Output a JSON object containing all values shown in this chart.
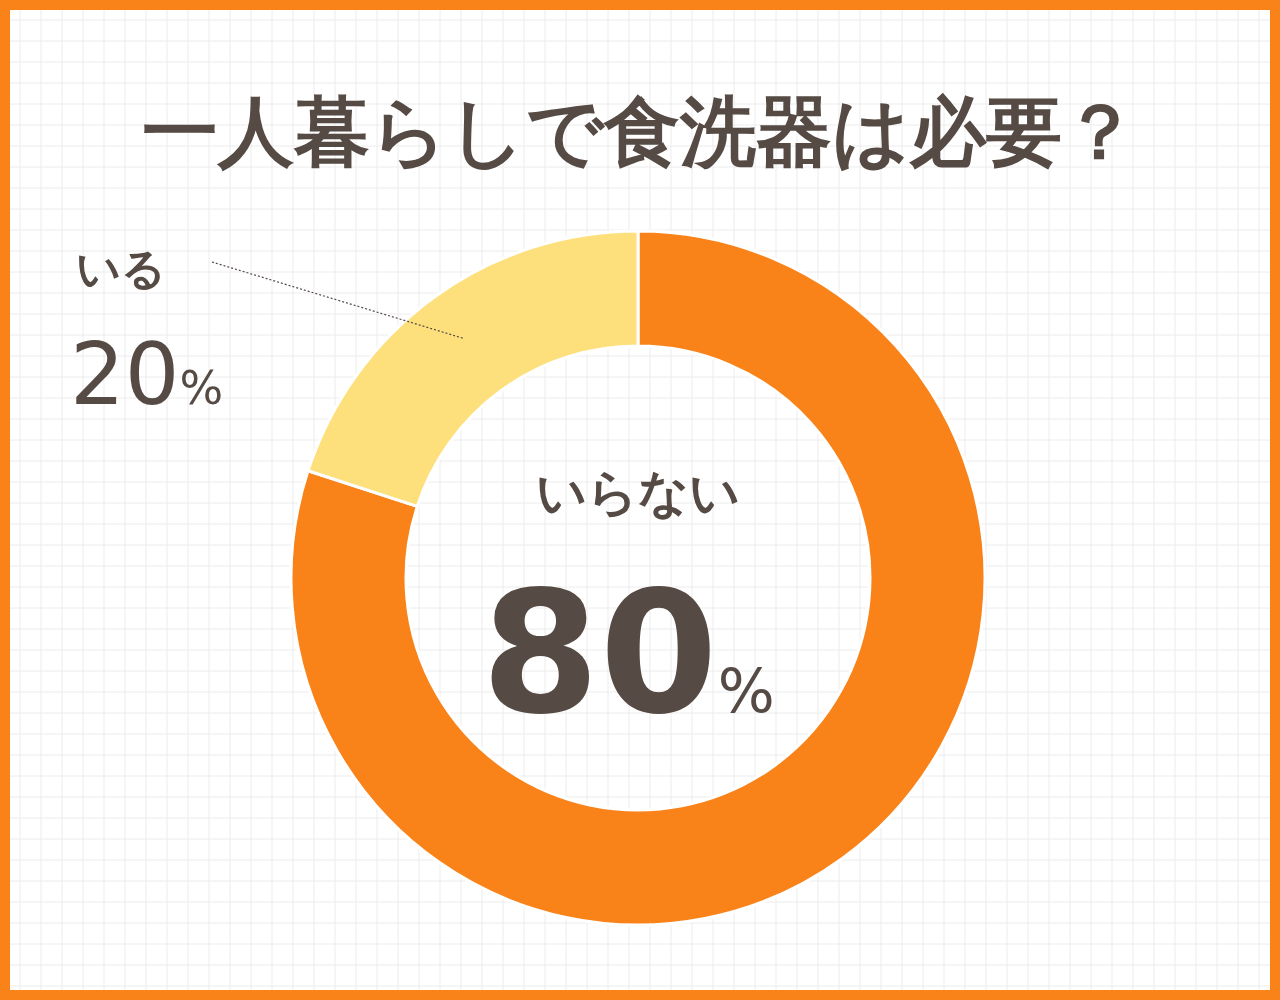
{
  "chart_data": {
    "type": "donut",
    "title": "一人暮らしで食洗器は必要？",
    "categories": [
      "いらない",
      "いる"
    ],
    "values": [
      80,
      20
    ],
    "colors": [
      "#f98219",
      "#fde07c"
    ],
    "value_labels": [
      "80%",
      "20%"
    ]
  }
}
